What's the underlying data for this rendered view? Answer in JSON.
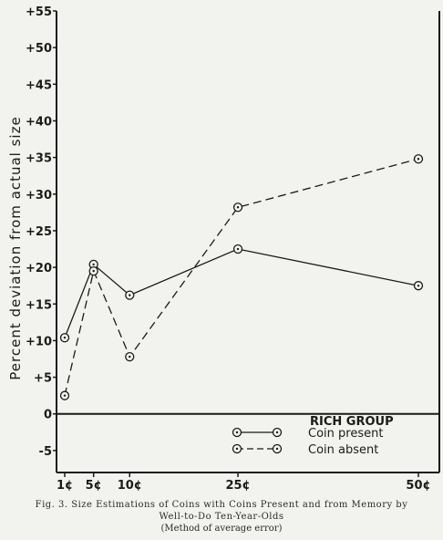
{
  "chart_data": {
    "type": "line",
    "categories": [
      "1¢",
      "5¢",
      "10¢",
      "25¢",
      "50¢"
    ],
    "x": [
      1,
      5,
      10,
      25,
      50
    ],
    "ylabel": "Percent deviation from actual size",
    "ylim": [
      -8,
      55
    ],
    "yticks": [
      "+55",
      "+50",
      "+45",
      "+40",
      "+35",
      "+30",
      "+25",
      "+20",
      "+15",
      "+10",
      "+5",
      "0",
      "-5"
    ],
    "ytick_values": [
      55,
      50,
      45,
      40,
      35,
      30,
      25,
      20,
      15,
      10,
      5,
      0,
      -5
    ],
    "series": [
      {
        "name": "Coin present",
        "style": "solid",
        "values": [
          10.4,
          20.4,
          16.2,
          22.5,
          17.5
        ]
      },
      {
        "name": "Coin absent",
        "style": "dashed",
        "values": [
          2.5,
          19.5,
          7.8,
          28.2,
          34.8
        ]
      }
    ],
    "legend_title": "RICH GROUP",
    "legend_placement": "bottom-right",
    "grid": false
  },
  "caption": {
    "line1": "Fig. 3. Size Estimations of Coins with Coins Present and from Memory by",
    "line2": "Well-to-Do Ten-Year-Olds",
    "line3": "(Method of average error)"
  }
}
